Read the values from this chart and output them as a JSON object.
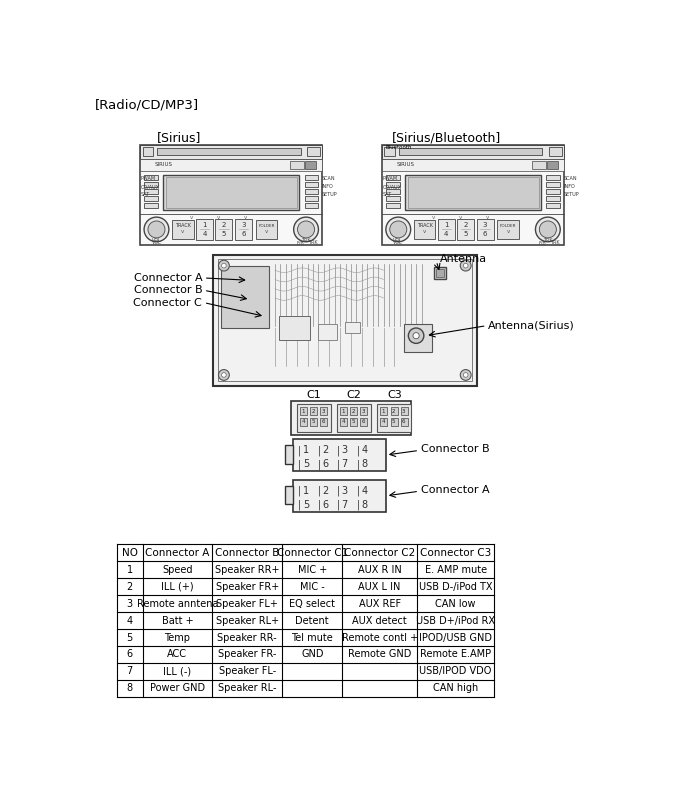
{
  "title": "[Radio/CD/MP3]",
  "sirius_label": "[Sirius]",
  "bluetooth_label": "[Sirius/Bluetooth]",
  "antenna_label": "Antenna",
  "antenna_sirius_label": "Antenna(Sirius)",
  "connector_a_label": "Connector A",
  "connector_b_label": "Connector B",
  "connector_c_label": "Connector C",
  "c1_label": "C1",
  "c2_label": "C2",
  "c3_label": "C3",
  "table_headers": [
    "NO",
    "Connector A",
    "Connector B",
    "Connector C1",
    "Connector C2",
    "Connector C3"
  ],
  "table_rows": [
    [
      "1",
      "Speed",
      "Speaker RR+",
      "MIC +",
      "AUX R IN",
      "E. AMP mute"
    ],
    [
      "2",
      "ILL (+)",
      "Speaker FR+",
      "MIC -",
      "AUX L IN",
      "USB D-/iPod TX"
    ],
    [
      "3",
      "Remote anntena",
      "Speaker FL+",
      "EQ select",
      "AUX REF",
      "CAN low"
    ],
    [
      "4",
      "Batt +",
      "Speaker RL+",
      "Detent",
      "AUX detect",
      "USB D+/iPod RX"
    ],
    [
      "5",
      "Temp",
      "Speaker RR-",
      "Tel mute",
      "Remote contl +",
      "IPOD/USB GND"
    ],
    [
      "6",
      "ACC",
      "Speaker FR-",
      "GND",
      "Remote GND",
      "Remote E.AMP"
    ],
    [
      "7",
      "ILL (-)",
      "Speaker FL-",
      "",
      "",
      "USB/IPOD VDO"
    ],
    [
      "8",
      "Power GND",
      "Speaker RL-",
      "",
      "",
      "CAN high"
    ]
  ],
  "bg_color": "#ffffff",
  "line_color": "#000000",
  "text_color": "#000000"
}
